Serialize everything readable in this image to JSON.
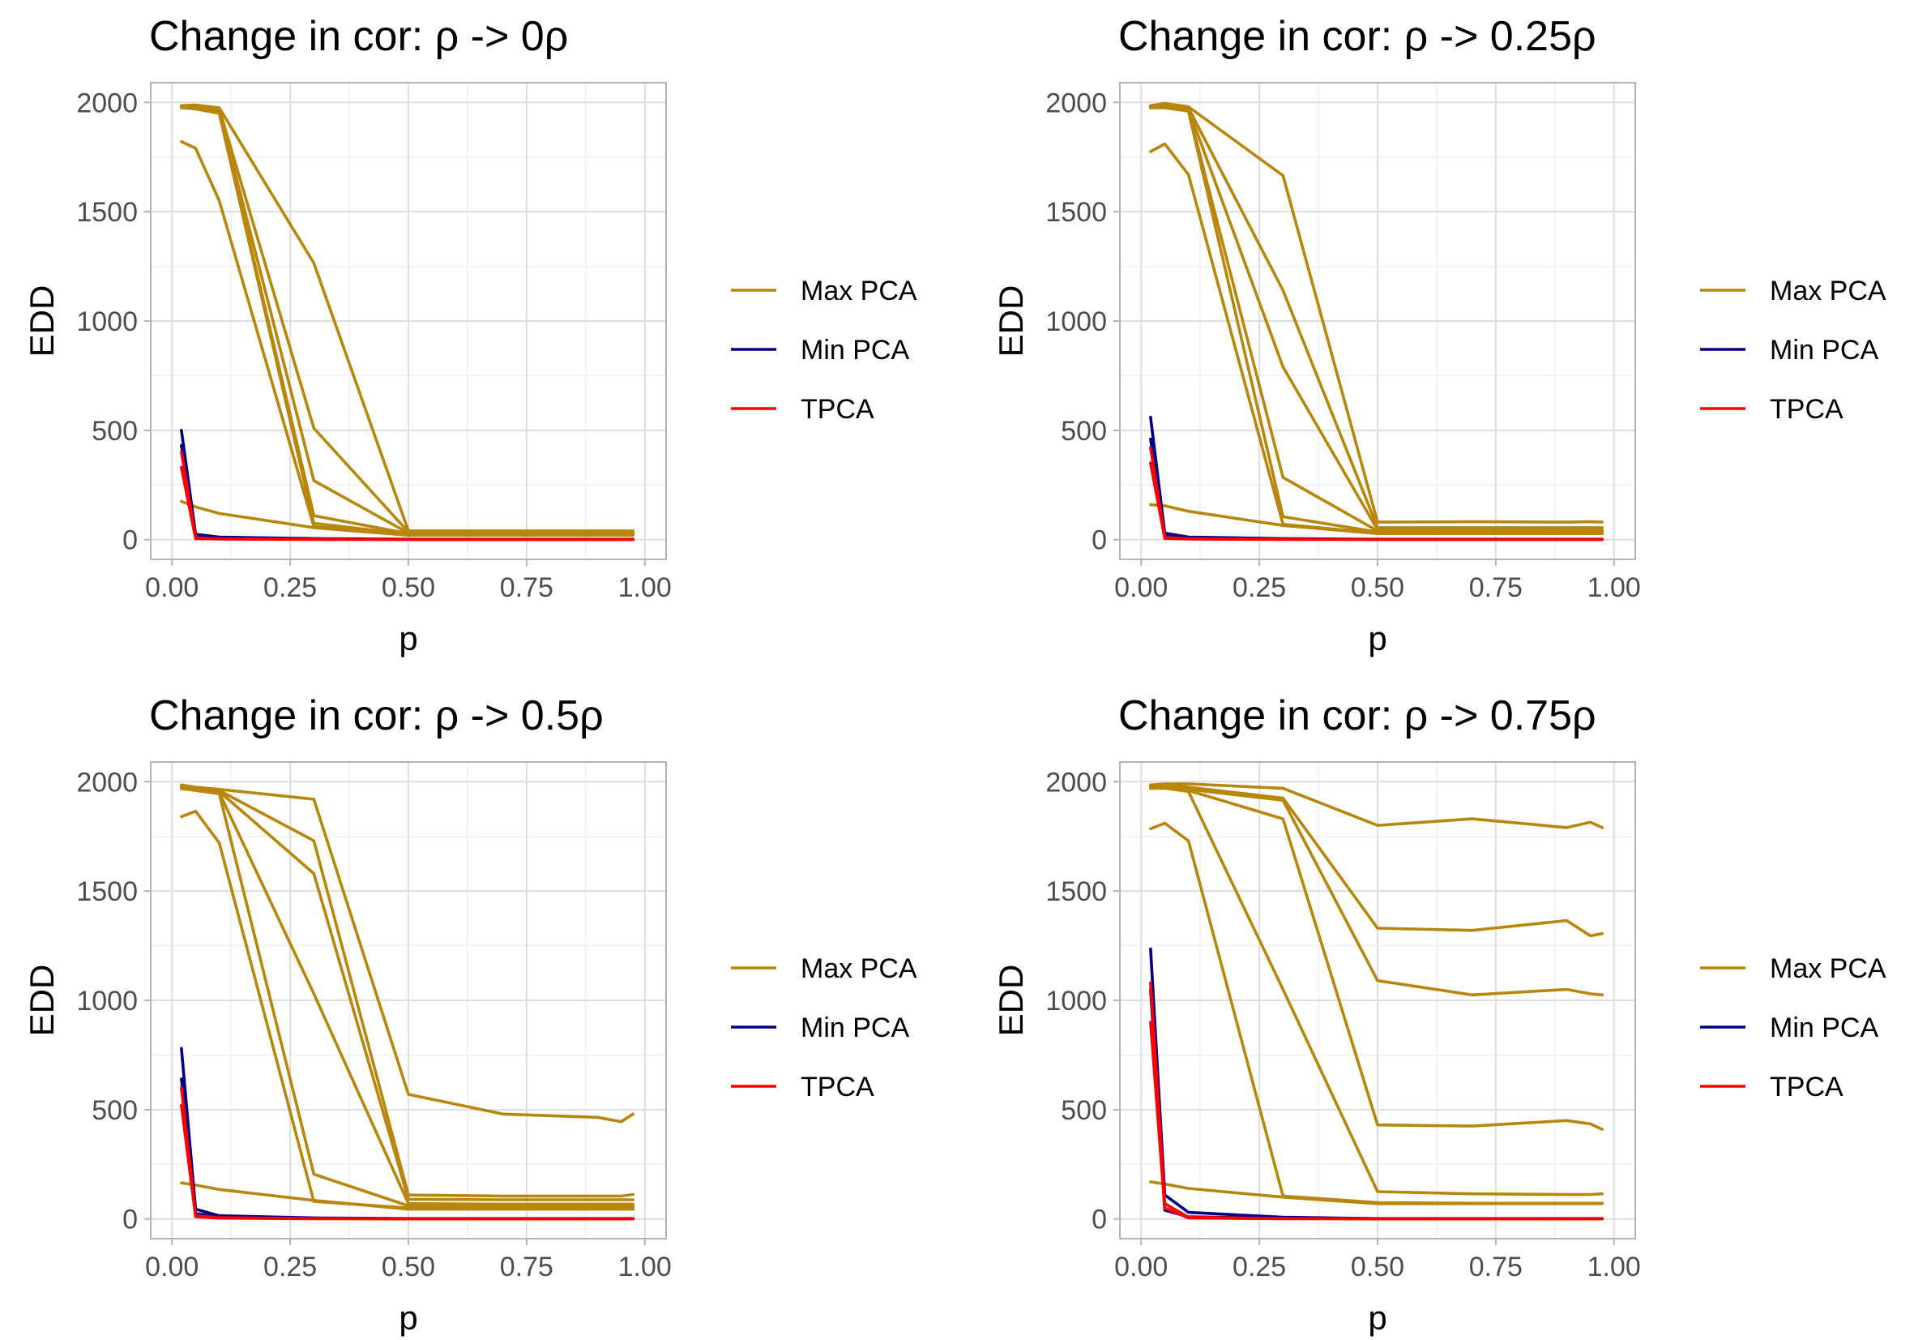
{
  "colors": {
    "max_pca": "#b8860b",
    "min_pca": "#00008b",
    "tpca": "#ff0000",
    "grid_major": "#dedede",
    "grid_minor": "#efefef",
    "panel_border": "#b3b3b3"
  },
  "legend": [
    "Max PCA",
    "Min PCA",
    "TPCA"
  ],
  "chart_data": [
    {
      "type": "line",
      "title": "Change in cor: ρ -> 0ρ",
      "xlabel": "p",
      "ylabel": "EDD",
      "xlim": [
        0,
        1
      ],
      "ylim": [
        0,
        2000
      ],
      "xticks": [
        "0.00",
        "0.25",
        "0.50",
        "0.75",
        "1.00"
      ],
      "yticks": [
        "0",
        "500",
        "1000",
        "1500",
        "2000"
      ],
      "legend_position": "right",
      "grid": true,
      "x": [
        0.02,
        0.05,
        0.1,
        0.3,
        0.5,
        0.7,
        0.9,
        0.95,
        0.975
      ],
      "series": [
        {
          "name": "Max PCA",
          "group": "max",
          "values": [
            1985,
            1988,
            1975,
            1265,
            40,
            40,
            40,
            40,
            40
          ]
        },
        {
          "name": "Max PCA",
          "group": "max",
          "values": [
            1980,
            1985,
            1970,
            510,
            35,
            35,
            35,
            35,
            35
          ]
        },
        {
          "name": "Max PCA",
          "group": "max",
          "values": [
            1982,
            1980,
            1960,
            270,
            30,
            30,
            30,
            30,
            30
          ]
        },
        {
          "name": "Max PCA",
          "group": "max",
          "values": [
            1978,
            1975,
            1955,
            110,
            28,
            28,
            28,
            28,
            28
          ]
        },
        {
          "name": "Max PCA",
          "group": "max",
          "values": [
            1975,
            1970,
            1950,
            75,
            25,
            25,
            25,
            25,
            25
          ]
        },
        {
          "name": "Max PCA",
          "group": "max",
          "values": [
            1820,
            1790,
            1550,
            60,
            22,
            22,
            22,
            22,
            22
          ]
        },
        {
          "name": "Max PCA",
          "group": "max",
          "values": [
            175,
            150,
            120,
            55,
            20,
            20,
            20,
            20,
            20
          ]
        },
        {
          "name": "Min PCA",
          "group": "min",
          "values": [
            500,
            25,
            12,
            5,
            2,
            2,
            2,
            2,
            2
          ]
        },
        {
          "name": "Min PCA",
          "group": "min",
          "values": [
            430,
            15,
            8,
            3,
            1,
            1,
            1,
            1,
            1
          ]
        },
        {
          "name": "TPCA",
          "group": "tpca",
          "values": [
            400,
            8,
            4,
            2,
            1,
            1,
            1,
            1,
            1
          ]
        },
        {
          "name": "TPCA",
          "group": "tpca",
          "values": [
            330,
            5,
            3,
            1,
            1,
            1,
            1,
            1,
            1
          ]
        }
      ]
    },
    {
      "type": "line",
      "title": "Change in cor: ρ -> 0.25ρ",
      "xlabel": "p",
      "ylabel": "EDD",
      "xlim": [
        0,
        1
      ],
      "ylim": [
        0,
        2000
      ],
      "xticks": [
        "0.00",
        "0.25",
        "0.50",
        "0.75",
        "1.00"
      ],
      "yticks": [
        "0",
        "500",
        "1000",
        "1500",
        "2000"
      ],
      "legend_position": "right",
      "grid": true,
      "x": [
        0.02,
        0.05,
        0.1,
        0.3,
        0.5,
        0.7,
        0.9,
        0.95,
        0.975
      ],
      "series": [
        {
          "name": "Max PCA",
          "group": "max",
          "values": [
            1985,
            1995,
            1980,
            1665,
            80,
            82,
            80,
            82,
            80
          ]
        },
        {
          "name": "Max PCA",
          "group": "max",
          "values": [
            1982,
            1990,
            1975,
            1140,
            55,
            55,
            55,
            55,
            55
          ]
        },
        {
          "name": "Max PCA",
          "group": "max",
          "values": [
            1980,
            1985,
            1970,
            790,
            45,
            45,
            45,
            45,
            45
          ]
        },
        {
          "name": "Max PCA",
          "group": "max",
          "values": [
            1978,
            1980,
            1965,
            285,
            40,
            40,
            40,
            40,
            40
          ]
        },
        {
          "name": "Max PCA",
          "group": "max",
          "values": [
            1975,
            1975,
            1960,
            105,
            35,
            35,
            35,
            35,
            35
          ]
        },
        {
          "name": "Max PCA",
          "group": "max",
          "values": [
            1775,
            1810,
            1670,
            70,
            30,
            30,
            30,
            30,
            30
          ]
        },
        {
          "name": "Max PCA",
          "group": "max",
          "values": [
            160,
            155,
            130,
            65,
            28,
            28,
            28,
            28,
            28
          ]
        },
        {
          "name": "Min PCA",
          "group": "min",
          "values": [
            560,
            30,
            12,
            5,
            2,
            2,
            2,
            2,
            2
          ]
        },
        {
          "name": "Min PCA",
          "group": "min",
          "values": [
            460,
            20,
            8,
            3,
            1,
            1,
            1,
            1,
            1
          ]
        },
        {
          "name": "TPCA",
          "group": "tpca",
          "values": [
            420,
            10,
            5,
            2,
            1,
            1,
            1,
            1,
            1
          ]
        },
        {
          "name": "TPCA",
          "group": "tpca",
          "values": [
            350,
            6,
            3,
            1,
            1,
            1,
            1,
            1,
            1
          ]
        }
      ]
    },
    {
      "type": "line",
      "title": "Change in cor: ρ -> 0.5ρ",
      "xlabel": "p",
      "ylabel": "EDD",
      "xlim": [
        0,
        1
      ],
      "ylim": [
        0,
        2000
      ],
      "xticks": [
        "0.00",
        "0.25",
        "0.50",
        "0.75",
        "1.00"
      ],
      "yticks": [
        "0",
        "500",
        "1000",
        "1500",
        "2000"
      ],
      "legend_position": "right",
      "grid": true,
      "x": [
        0.02,
        0.05,
        0.1,
        0.3,
        0.5,
        0.7,
        0.9,
        0.95,
        0.975
      ],
      "series": [
        {
          "name": "Max PCA",
          "group": "max",
          "values": [
            1985,
            1975,
            1965,
            1920,
            570,
            480,
            465,
            445,
            480
          ]
        },
        {
          "name": "Max PCA",
          "group": "max",
          "values": [
            1980,
            1970,
            1960,
            1730,
            110,
            105,
            105,
            105,
            112
          ]
        },
        {
          "name": "Max PCA",
          "group": "max",
          "values": [
            1975,
            1968,
            1955,
            1580,
            90,
            88,
            88,
            88,
            88
          ]
        },
        {
          "name": "Max PCA",
          "group": "max",
          "values": [
            1972,
            1965,
            1950,
            1030,
            70,
            68,
            68,
            68,
            68
          ]
        },
        {
          "name": "Max PCA",
          "group": "max",
          "values": [
            1968,
            1960,
            1945,
            205,
            60,
            58,
            58,
            58,
            58
          ]
        },
        {
          "name": "Max PCA",
          "group": "max",
          "values": [
            1840,
            1865,
            1720,
            80,
            50,
            50,
            50,
            50,
            50
          ]
        },
        {
          "name": "Max PCA",
          "group": "max",
          "values": [
            165,
            155,
            135,
            85,
            45,
            45,
            45,
            45,
            45
          ]
        },
        {
          "name": "Min PCA",
          "group": "min",
          "values": [
            780,
            45,
            15,
            5,
            2,
            2,
            2,
            2,
            2
          ]
        },
        {
          "name": "Min PCA",
          "group": "min",
          "values": [
            640,
            25,
            10,
            3,
            1,
            1,
            1,
            1,
            1
          ]
        },
        {
          "name": "TPCA",
          "group": "tpca",
          "values": [
            600,
            15,
            6,
            2,
            1,
            1,
            1,
            1,
            1
          ]
        },
        {
          "name": "TPCA",
          "group": "tpca",
          "values": [
            520,
            10,
            4,
            1,
            1,
            1,
            1,
            1,
            1
          ]
        }
      ]
    },
    {
      "type": "line",
      "title": "Change in cor: ρ -> 0.75ρ",
      "xlabel": "p",
      "ylabel": "EDD",
      "xlim": [
        0,
        1
      ],
      "ylim": [
        0,
        2000
      ],
      "xticks": [
        "0.00",
        "0.25",
        "0.50",
        "0.75",
        "1.00"
      ],
      "yticks": [
        "0",
        "500",
        "1000",
        "1500",
        "2000"
      ],
      "legend_position": "right",
      "grid": true,
      "x": [
        0.02,
        0.05,
        0.1,
        0.3,
        0.5,
        0.7,
        0.9,
        0.95,
        0.975
      ],
      "series": [
        {
          "name": "Max PCA",
          "group": "max",
          "values": [
            1985,
            1990,
            1990,
            1970,
            1800,
            1830,
            1790,
            1815,
            1790
          ]
        },
        {
          "name": "Max PCA",
          "group": "max",
          "values": [
            1982,
            1985,
            1975,
            1925,
            1330,
            1320,
            1365,
            1295,
            1305
          ]
        },
        {
          "name": "Max PCA",
          "group": "max",
          "values": [
            1978,
            1980,
            1965,
            1915,
            1090,
            1025,
            1050,
            1030,
            1025
          ]
        },
        {
          "name": "Max PCA",
          "group": "max",
          "values": [
            1975,
            1975,
            1960,
            1830,
            430,
            425,
            450,
            435,
            410
          ]
        },
        {
          "name": "Max PCA",
          "group": "max",
          "values": [
            1970,
            1970,
            1955,
            1050,
            125,
            115,
            112,
            112,
            115
          ]
        },
        {
          "name": "Max PCA",
          "group": "max",
          "values": [
            1785,
            1810,
            1730,
            105,
            75,
            72,
            72,
            72,
            72
          ]
        },
        {
          "name": "Max PCA",
          "group": "max",
          "values": [
            170,
            160,
            140,
            100,
            70,
            70,
            70,
            70,
            70
          ]
        },
        {
          "name": "Min PCA",
          "group": "min",
          "values": [
            1235,
            110,
            30,
            8,
            2,
            2,
            2,
            2,
            2
          ]
        },
        {
          "name": "Min PCA",
          "group": "min",
          "values": [
            1050,
            40,
            10,
            3,
            1,
            1,
            1,
            1,
            1
          ]
        },
        {
          "name": "TPCA",
          "group": "tpca",
          "values": [
            1080,
            70,
            8,
            2,
            1,
            1,
            1,
            1,
            1
          ]
        },
        {
          "name": "TPCA",
          "group": "tpca",
          "values": [
            900,
            50,
            5,
            1,
            1,
            1,
            1,
            1,
            1
          ]
        }
      ]
    }
  ]
}
